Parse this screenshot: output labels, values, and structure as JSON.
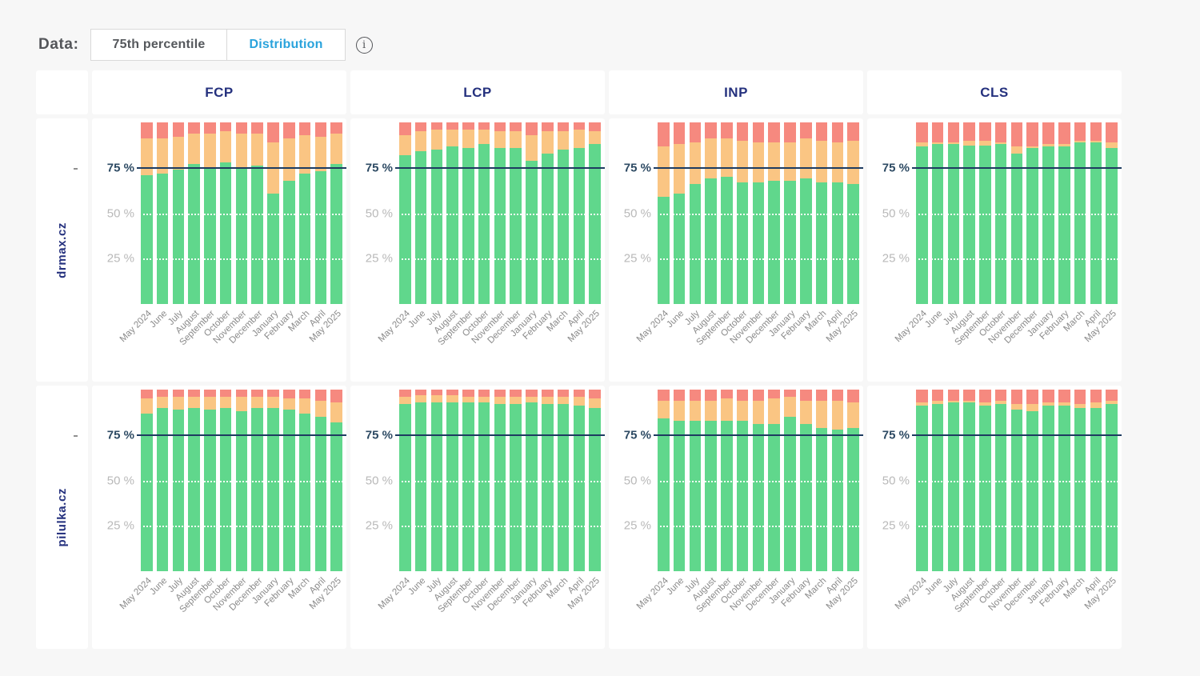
{
  "controls": {
    "label": "Data:",
    "options": [
      {
        "label": "75th percentile",
        "active": false
      },
      {
        "label": "Distribution",
        "active": true
      }
    ],
    "info_icon_glyph": "i"
  },
  "colors": {
    "good": "#60d78c",
    "needs_improvement": "#fac583",
    "poor": "#f6897f",
    "threshold_line": "#1d3b60",
    "accent_blue": "#2aa3dc",
    "heading_navy": "#25317e",
    "page_background": "#f7f7f7"
  },
  "grid": {
    "columns": [
      "FCP",
      "LCP",
      "INP",
      "CLS"
    ],
    "rows": [
      "drmax.cz",
      "pilulka.cz"
    ]
  },
  "chart_data": {
    "type": "bar",
    "stacked": true,
    "unit": "%",
    "ylim": [
      0,
      100
    ],
    "y_tick_labels": [
      "75 %",
      "50 %",
      "25 %"
    ],
    "y_ticks": [
      75,
      50,
      25
    ],
    "threshold_line": 75,
    "grid": "dotted at 25 and 50, solid rule at 75",
    "legend_position": "none",
    "categories": [
      "May 2024",
      "June",
      "July",
      "August",
      "September",
      "October",
      "November",
      "December",
      "January",
      "February",
      "March",
      "April",
      "May 2025"
    ],
    "segment_order_bottom_to_top": [
      "good",
      "needs_improvement",
      "poor"
    ],
    "charts": [
      {
        "row": "drmax.cz",
        "metric": "FCP",
        "series": [
          {
            "name": "good",
            "values": [
              71,
              72,
              74,
              77,
              75,
              78,
              75,
              76,
              61,
              68,
              72,
              73,
              77
            ]
          },
          {
            "name": "needs_improvement",
            "values": [
              20,
              19,
              18,
              17,
              19,
              17,
              19,
              18,
              28,
              23,
              21,
              19,
              17
            ]
          },
          {
            "name": "poor",
            "values": [
              9,
              9,
              8,
              6,
              6,
              5,
              6,
              6,
              11,
              9,
              7,
              8,
              6
            ]
          }
        ]
      },
      {
        "row": "drmax.cz",
        "metric": "LCP",
        "series": [
          {
            "name": "good",
            "values": [
              82,
              84,
              85,
              87,
              86,
              88,
              86,
              86,
              79,
              83,
              85,
              86,
              88
            ]
          },
          {
            "name": "needs_improvement",
            "values": [
              11,
              11,
              11,
              9,
              10,
              8,
              9,
              9,
              14,
              12,
              10,
              10,
              7
            ]
          },
          {
            "name": "poor",
            "values": [
              7,
              5,
              4,
              4,
              4,
              4,
              5,
              5,
              7,
              5,
              5,
              4,
              5
            ]
          }
        ]
      },
      {
        "row": "drmax.cz",
        "metric": "INP",
        "series": [
          {
            "name": "good",
            "values": [
              59,
              61,
              66,
              69,
              70,
              67,
              67,
              68,
              68,
              69,
              67,
              67,
              66
            ]
          },
          {
            "name": "needs_improvement",
            "values": [
              28,
              27,
              23,
              22,
              21,
              23,
              22,
              21,
              21,
              22,
              23,
              22,
              24
            ]
          },
          {
            "name": "poor",
            "values": [
              13,
              12,
              11,
              9,
              9,
              10,
              11,
              11,
              11,
              9,
              10,
              11,
              10
            ]
          }
        ]
      },
      {
        "row": "drmax.cz",
        "metric": "CLS",
        "series": [
          {
            "name": "good",
            "values": [
              87,
              88,
              88,
              87,
              87,
              88,
              83,
              86,
              87,
              87,
              89,
              89,
              86
            ]
          },
          {
            "name": "needs_improvement",
            "values": [
              2,
              1,
              1,
              3,
              3,
              1,
              4,
              1,
              1,
              1,
              1,
              1,
              3
            ]
          },
          {
            "name": "poor",
            "values": [
              11,
              11,
              11,
              10,
              10,
              11,
              13,
              13,
              12,
              12,
              10,
              10,
              11
            ]
          }
        ]
      },
      {
        "row": "pilulka.cz",
        "metric": "FCP",
        "series": [
          {
            "name": "good",
            "values": [
              87,
              90,
              89,
              90,
              89,
              90,
              88,
              90,
              90,
              89,
              87,
              85,
              82
            ]
          },
          {
            "name": "needs_improvement",
            "values": [
              8,
              6,
              7,
              6,
              7,
              6,
              8,
              6,
              6,
              6,
              8,
              9,
              11
            ]
          },
          {
            "name": "poor",
            "values": [
              5,
              4,
              4,
              4,
              4,
              4,
              4,
              4,
              4,
              5,
              5,
              6,
              7
            ]
          }
        ]
      },
      {
        "row": "pilulka.cz",
        "metric": "LCP",
        "series": [
          {
            "name": "good",
            "values": [
              92,
              93,
              93,
              93,
              93,
              93,
              92,
              92,
              93,
              92,
              92,
              91,
              90
            ]
          },
          {
            "name": "needs_improvement",
            "values": [
              4,
              4,
              4,
              4,
              3,
              3,
              4,
              4,
              3,
              4,
              4,
              5,
              5
            ]
          },
          {
            "name": "poor",
            "values": [
              4,
              3,
              3,
              3,
              4,
              4,
              4,
              4,
              4,
              4,
              4,
              4,
              5
            ]
          }
        ]
      },
      {
        "row": "pilulka.cz",
        "metric": "INP",
        "series": [
          {
            "name": "good",
            "values": [
              84,
              83,
              83,
              83,
              83,
              83,
              81,
              81,
              85,
              81,
              79,
              78,
              79
            ]
          },
          {
            "name": "needs_improvement",
            "values": [
              10,
              11,
              11,
              11,
              12,
              11,
              13,
              14,
              11,
              13,
              15,
              16,
              14
            ]
          },
          {
            "name": "poor",
            "values": [
              6,
              6,
              6,
              6,
              5,
              6,
              6,
              5,
              4,
              6,
              6,
              6,
              7
            ]
          }
        ]
      },
      {
        "row": "pilulka.cz",
        "metric": "CLS",
        "series": [
          {
            "name": "good",
            "values": [
              91,
              92,
              93,
              93,
              91,
              92,
              89,
              88,
              91,
              91,
              90,
              90,
              92
            ]
          },
          {
            "name": "needs_improvement",
            "values": [
              2,
              2,
              1,
              1,
              2,
              2,
              3,
              4,
              2,
              2,
              2,
              3,
              2
            ]
          },
          {
            "name": "poor",
            "values": [
              7,
              6,
              6,
              6,
              7,
              6,
              8,
              8,
              7,
              7,
              8,
              7,
              6
            ]
          }
        ]
      }
    ]
  }
}
